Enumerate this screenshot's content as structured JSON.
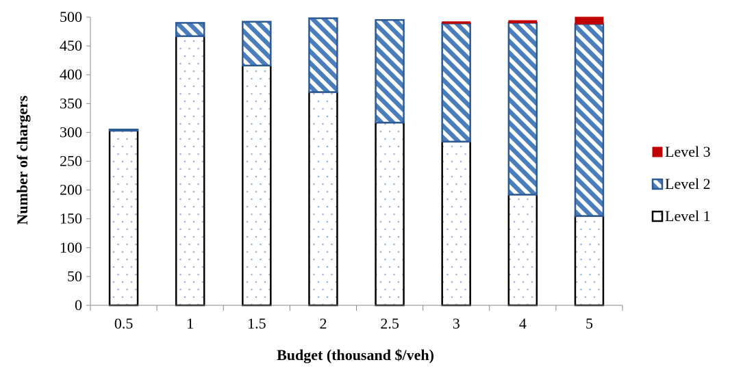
{
  "chart_data": {
    "type": "bar",
    "stacked": true,
    "title": "",
    "xlabel": "Budget (thousand $/veh)",
    "ylabel": "Number of chargers",
    "ylim": [
      0,
      500
    ],
    "yticks": [
      0,
      50,
      100,
      150,
      200,
      250,
      300,
      350,
      400,
      450,
      500
    ],
    "categories": [
      "0.5",
      "1",
      "1.5",
      "2",
      "2.5",
      "3",
      "4",
      "5"
    ],
    "series": [
      {
        "name": "Level 1",
        "values": [
          303,
          467,
          416,
          370,
          317,
          284,
          192,
          155
        ]
      },
      {
        "name": "Level 2",
        "values": [
          2,
          23,
          76,
          128,
          178,
          205,
          298,
          333
        ]
      },
      {
        "name": "Level 3",
        "values": [
          0,
          0,
          0,
          0,
          0,
          3,
          4,
          12
        ]
      }
    ],
    "grid": false,
    "legend": {
      "position": "right",
      "order": [
        "Level 3",
        "Level 2",
        "Level 1"
      ]
    },
    "colors": {
      "level1_fill": "#ffffff",
      "level1_dots": "#9bb5dc",
      "level1_border": "#000000",
      "level2_fill": "#4a7ebb",
      "level2_border": "#2c5a96",
      "level3_fill": "#c00000"
    }
  }
}
